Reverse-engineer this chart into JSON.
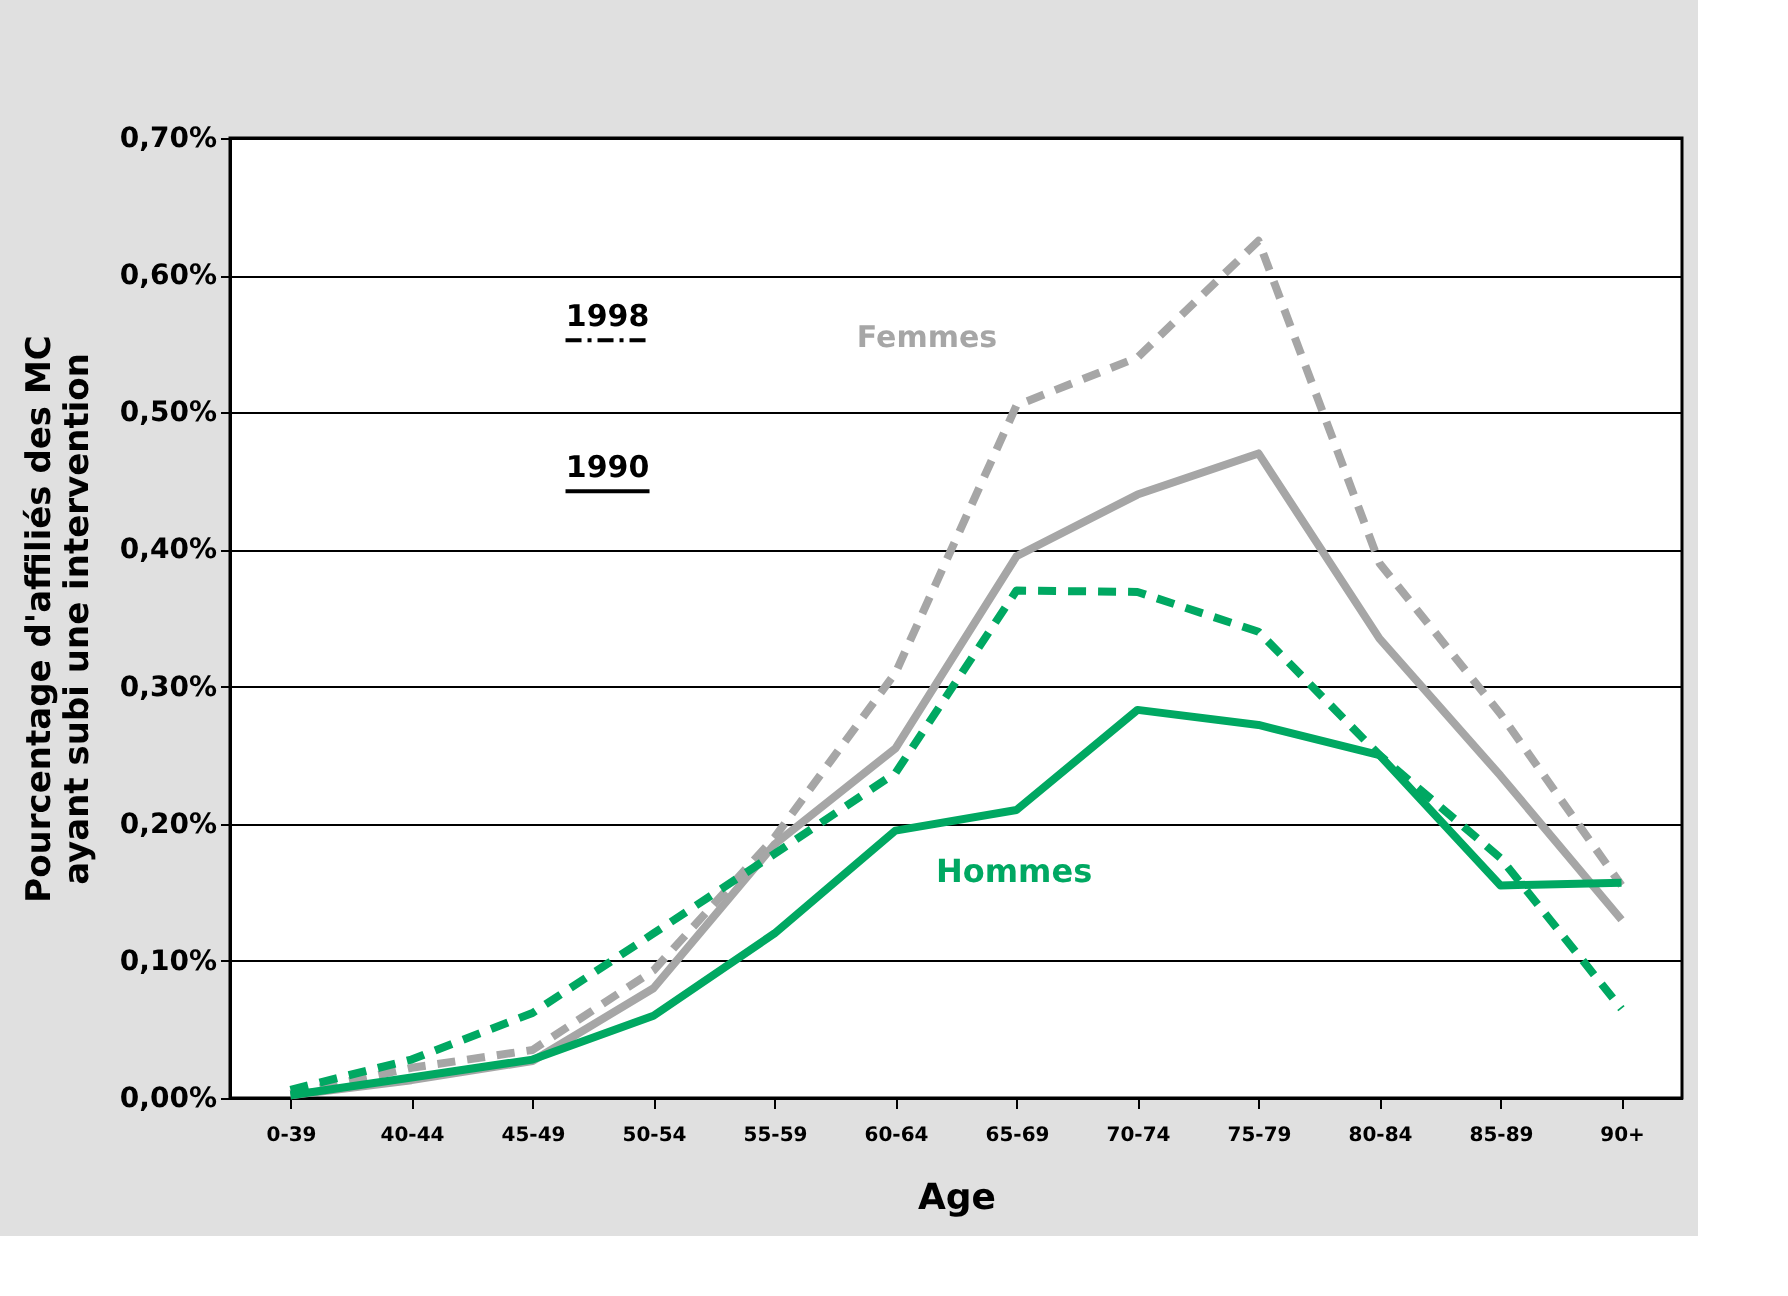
{
  "chart_data": {
    "type": "line",
    "xlabel": "Age",
    "ylabel": "Pourcentage d'affiliés des MC\nayant subi une intervention",
    "categories": [
      "0-39",
      "40-44",
      "45-49",
      "50-54",
      "55-59",
      "60-64",
      "65-69",
      "70-74",
      "75-79",
      "80-84",
      "85-89",
      "90+"
    ],
    "series": [
      {
        "color": "#a6a6a6",
        "line_style": "dashed",
        "values": [
          0.003,
          0.022,
          0.035,
          0.093,
          0.19,
          0.31,
          0.505,
          0.54,
          0.625,
          0.39,
          0.28,
          0.155
        ]
      },
      {
        "color": "#a6a6a6",
        "line_style": "solid",
        "values": [
          0.002,
          0.013,
          0.027,
          0.08,
          0.185,
          0.255,
          0.395,
          0.44,
          0.47,
          0.335,
          0.235,
          0.13
        ]
      },
      {
        "color": "#00a862",
        "line_style": "dashed",
        "values": [
          0.006,
          0.028,
          0.062,
          0.12,
          0.178,
          0.237,
          0.37,
          0.369,
          0.34,
          0.25,
          0.175,
          0.065
        ]
      },
      {
        "color": "#00a862",
        "line_style": "solid",
        "values": [
          0.002,
          0.015,
          0.028,
          0.06,
          0.12,
          0.195,
          0.21,
          0.283,
          0.272,
          0.25,
          0.155,
          0.157
        ]
      }
    ],
    "annotations": [
      "Femmes",
      "Hommes",
      "1998",
      "1990"
    ],
    "ylim": [
      0,
      0.7
    ],
    "yticks": [
      {
        "value": 0,
        "label": "0,00%"
      },
      {
        "value": 0.1,
        "label": "0,10%"
      },
      {
        "value": 0.2,
        "label": "0,20%"
      },
      {
        "value": 0.3,
        "label": "0,30%"
      },
      {
        "value": 0.4,
        "label": "0,40%"
      },
      {
        "value": 0.5,
        "label": "0,50%"
      },
      {
        "value": 0.6,
        "label": "0,60%"
      },
      {
        "value": 0.7,
        "label": "0,70%"
      }
    ],
    "grid": "y",
    "marker": "none"
  }
}
